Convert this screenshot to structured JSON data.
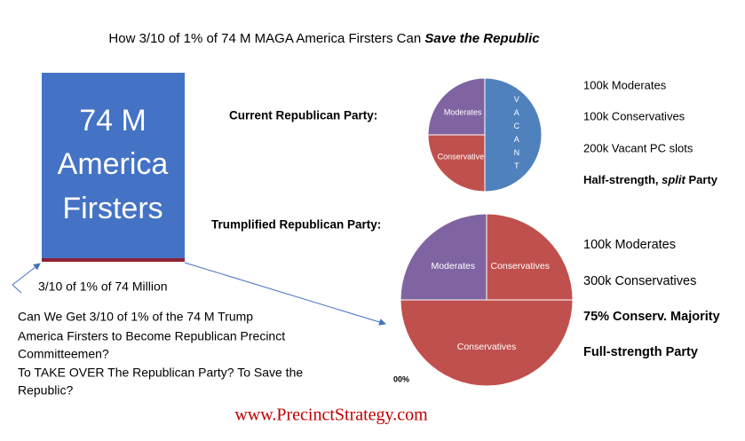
{
  "title": {
    "text": "How 3/10 of 1% of 74 M MAGA America Firsters Can",
    "emphasis": "Save the Republic"
  },
  "box": {
    "lines": [
      "74 M",
      "America",
      "Firsters"
    ]
  },
  "arrow_label": "3/10 of 1% of 74 Million",
  "question": [
    "Can We Get 3/10 of 1% of the 74 M Trump",
    "America Firsters to Become Republican Precinct",
    "Committeemen?",
    "To TAKE OVER The Republican Party?  To Save the",
    "Republic?"
  ],
  "current": {
    "label": "Current Republican Party:",
    "notes": [
      "100k Moderates",
      "100k Conservatives",
      "200k Vacant PC slots"
    ],
    "summary": [
      "Half-strength,",
      "split",
      "Party"
    ]
  },
  "trumplified": {
    "label": "Trumplified Republican Party:",
    "notes": [
      "100k Moderates",
      "300k Conservatives",
      "75% Conserv. Majority",
      "Full-strength Party"
    ]
  },
  "fragment": "00%",
  "footer": "www.PrecinctStrategy.com",
  "chart_data": [
    {
      "type": "pie",
      "categories": [
        "Moderates",
        "Conservatives",
        "VACANT"
      ],
      "values": [
        25,
        25,
        50
      ],
      "colors": [
        "#8064a2",
        "#c0504d",
        "#4f81bd"
      ]
    },
    {
      "type": "pie",
      "categories": [
        "Moderates",
        "Conservatives",
        "Conservatives"
      ],
      "values": [
        25,
        50,
        25
      ],
      "colors": [
        "#8064a2",
        "#c0504d",
        "#c0504d"
      ]
    }
  ]
}
